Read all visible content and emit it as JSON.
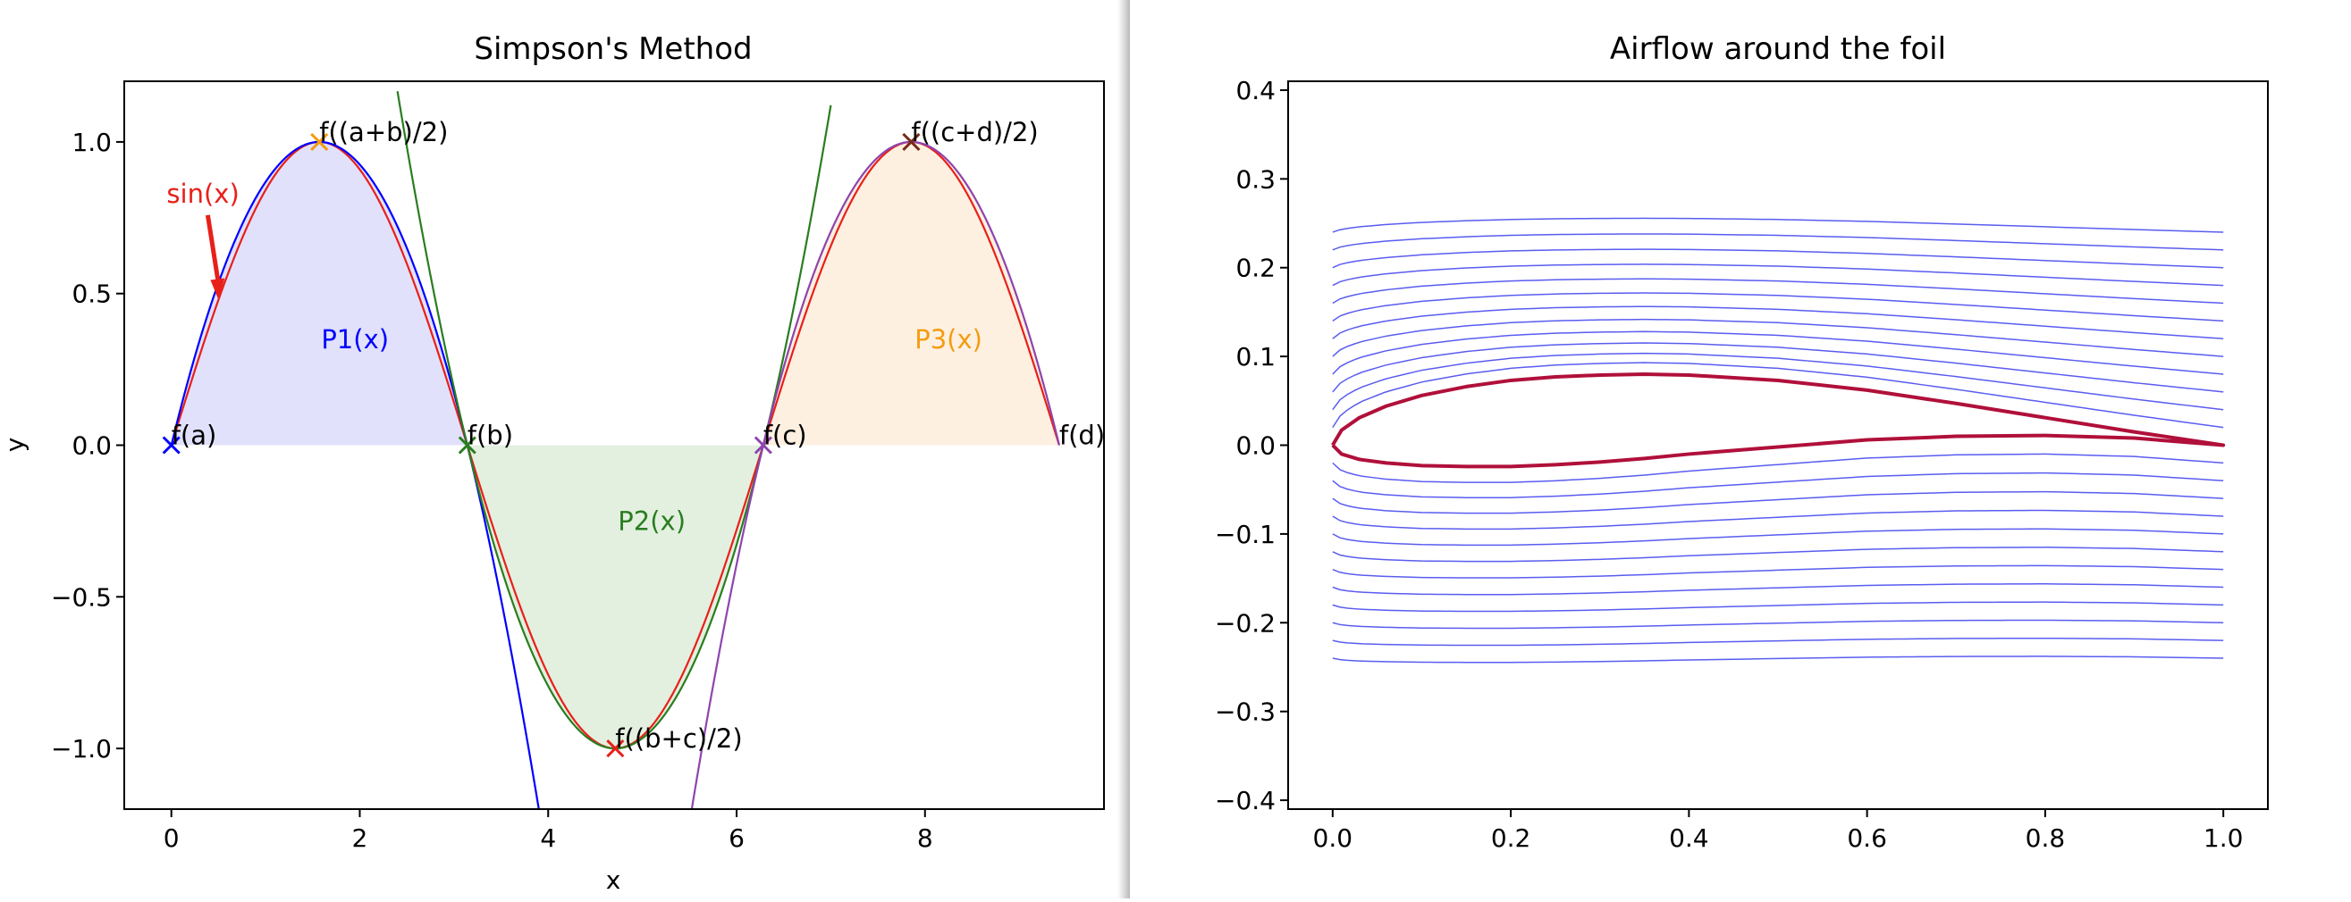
{
  "colors": {
    "blue": "#0000ff",
    "red": "#e8201a",
    "green": "#2a7d20",
    "purple": "#8e44ad",
    "orange": "#f39c12",
    "brown": "#7a2a18",
    "fill_p1": "#e1e1fb",
    "fill_p2": "#e3f0e0",
    "fill_p3": "#fdf0e1",
    "foil": "#b0103a",
    "streamline": "#5a5cf0"
  },
  "chart_data": [
    {
      "type": "line",
      "title": "Simpson's Method",
      "xlabel": "x",
      "ylabel": "y",
      "xlim": [
        -0.5,
        9.9
      ],
      "ylim": [
        -1.2,
        1.2
      ],
      "xticks": [
        {
          "value": 0,
          "label": "0"
        },
        {
          "value": 2,
          "label": "2"
        },
        {
          "value": 4,
          "label": "4"
        },
        {
          "value": 6,
          "label": "6"
        },
        {
          "value": 8,
          "label": "8"
        }
      ],
      "yticks": [
        {
          "value": 1.0,
          "label": "1.0"
        },
        {
          "value": 0.5,
          "label": "0.5"
        },
        {
          "value": 0.0,
          "label": "0.0"
        },
        {
          "value": -0.5,
          "label": "−0.5"
        },
        {
          "value": -1.0,
          "label": "−1.0"
        }
      ],
      "series": [
        {
          "name": "sin(x)",
          "function": "sin",
          "x_range": [
            0,
            9.4248
          ],
          "color": "red"
        },
        {
          "name": "P1(x)",
          "function": "quadratic",
          "points": [
            [
              0,
              0
            ],
            [
              1.5708,
              1.0
            ],
            [
              3.1416,
              0
            ]
          ],
          "x_range": [
            0,
            3.95
          ],
          "color": "blue",
          "fill_range": [
            0,
            3.1416
          ],
          "fill_color": "fill_p1"
        },
        {
          "name": "P2(x)",
          "function": "quadratic",
          "points": [
            [
              3.1416,
              0
            ],
            [
              4.7124,
              -1.0
            ],
            [
              6.2832,
              0
            ]
          ],
          "x_range": [
            2.4,
            7.0
          ],
          "color": "green",
          "fill_range": [
            3.1416,
            6.2832
          ],
          "fill_color": "fill_p2"
        },
        {
          "name": "P3(x)",
          "function": "quadratic",
          "points": [
            [
              6.2832,
              0
            ],
            [
              7.854,
              1.0
            ],
            [
              9.4248,
              0
            ]
          ],
          "x_range": [
            5.5,
            9.4248
          ],
          "color": "purple",
          "fill_range": [
            6.2832,
            9.4248
          ],
          "fill_color": "fill_p3"
        }
      ],
      "markers": [
        {
          "x": 0,
          "y": 0,
          "label": "f(a)",
          "color": "blue"
        },
        {
          "x": 1.5708,
          "y": 1.0,
          "label": "f((a+b)/2)",
          "color": "orange"
        },
        {
          "x": 3.1416,
          "y": 0,
          "label": "f(b)",
          "color": "green"
        },
        {
          "x": 4.7124,
          "y": -1.0,
          "label": "f((b+c)/2)",
          "color": "red"
        },
        {
          "x": 6.2832,
          "y": 0,
          "label": "f(c)",
          "color": "purple"
        },
        {
          "x": 7.854,
          "y": 1.0,
          "label": "f((c+d)/2)",
          "color": "brown"
        },
        {
          "x": 9.4248,
          "y": 0,
          "label": "f(d)"
        }
      ],
      "annotations": [
        {
          "text": "sin(x)",
          "color": "red",
          "text_at": [
            -0.05,
            0.8
          ],
          "arrow_to": [
            0.5,
            0.48
          ]
        },
        {
          "text": "P1(x)",
          "color": "blue",
          "at": [
            1.95,
            0.32
          ]
        },
        {
          "text": "P2(x)",
          "color": "green",
          "at": [
            5.1,
            -0.28
          ]
        },
        {
          "text": "P3(x)",
          "color": "orange",
          "at": [
            8.25,
            0.32
          ]
        }
      ],
      "grid": false
    },
    {
      "type": "line",
      "title": "Airflow around the foil",
      "xlabel": "",
      "ylabel": "",
      "xlim": [
        -0.05,
        1.05
      ],
      "ylim": [
        -0.41,
        0.41
      ],
      "xticks": [
        {
          "value": 0.0,
          "label": "0.0"
        },
        {
          "value": 0.2,
          "label": "0.2"
        },
        {
          "value": 0.4,
          "label": "0.4"
        },
        {
          "value": 0.6,
          "label": "0.6"
        },
        {
          "value": 0.8,
          "label": "0.8"
        },
        {
          "value": 1.0,
          "label": "1.0"
        }
      ],
      "yticks": [
        {
          "value": 0.4,
          "label": "0.4"
        },
        {
          "value": 0.3,
          "label": "0.3"
        },
        {
          "value": 0.2,
          "label": "0.2"
        },
        {
          "value": 0.1,
          "label": "0.1"
        },
        {
          "value": 0.0,
          "label": "0.0"
        },
        {
          "value": -0.1,
          "label": "−0.1"
        },
        {
          "value": -0.2,
          "label": "−0.2"
        },
        {
          "value": -0.3,
          "label": "−0.3"
        },
        {
          "value": -0.4,
          "label": "−0.4"
        }
      ],
      "foil": {
        "upper": [
          [
            0.0,
            0.0
          ],
          [
            0.01,
            0.017
          ],
          [
            0.03,
            0.031
          ],
          [
            0.06,
            0.044
          ],
          [
            0.1,
            0.056
          ],
          [
            0.15,
            0.066
          ],
          [
            0.2,
            0.073
          ],
          [
            0.25,
            0.077
          ],
          [
            0.3,
            0.079
          ],
          [
            0.35,
            0.08
          ],
          [
            0.4,
            0.079
          ],
          [
            0.5,
            0.073
          ],
          [
            0.6,
            0.062
          ],
          [
            0.7,
            0.047
          ],
          [
            0.8,
            0.031
          ],
          [
            0.9,
            0.015
          ],
          [
            1.0,
            0.0
          ]
        ],
        "lower": [
          [
            0.0,
            0.0
          ],
          [
            0.01,
            -0.01
          ],
          [
            0.03,
            -0.016
          ],
          [
            0.06,
            -0.02
          ],
          [
            0.1,
            -0.023
          ],
          [
            0.15,
            -0.024
          ],
          [
            0.2,
            -0.024
          ],
          [
            0.25,
            -0.022
          ],
          [
            0.3,
            -0.019
          ],
          [
            0.35,
            -0.015
          ],
          [
            0.4,
            -0.01
          ],
          [
            0.5,
            -0.002
          ],
          [
            0.6,
            0.006
          ],
          [
            0.7,
            0.01
          ],
          [
            0.8,
            0.011
          ],
          [
            0.9,
            0.008
          ],
          [
            1.0,
            0.0
          ]
        ],
        "color": "foil"
      },
      "streamlines": {
        "upper_start": [
          0.02,
          0.04,
          0.06,
          0.08,
          0.1,
          0.12,
          0.14,
          0.16,
          0.18,
          0.2,
          0.22,
          0.24
        ],
        "lower_start": [
          -0.02,
          -0.04,
          -0.06,
          -0.08,
          -0.1,
          -0.12,
          -0.14,
          -0.16,
          -0.18,
          -0.2,
          -0.22,
          -0.24
        ],
        "x_range": [
          0.0,
          1.0
        ],
        "color": "streamline"
      },
      "grid": false
    }
  ]
}
